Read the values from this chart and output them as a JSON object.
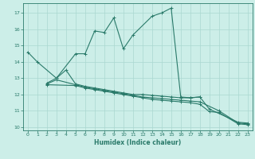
{
  "xlabel": "Humidex (Indice chaleur)",
  "xlim": [
    -0.5,
    23.5
  ],
  "ylim": [
    9.8,
    17.6
  ],
  "yticks": [
    10,
    11,
    12,
    13,
    14,
    15,
    16,
    17
  ],
  "xticks": [
    0,
    1,
    2,
    3,
    4,
    5,
    6,
    7,
    8,
    9,
    10,
    11,
    12,
    13,
    14,
    15,
    16,
    17,
    18,
    19,
    20,
    21,
    22,
    23
  ],
  "bg_color": "#cceee8",
  "line_color": "#2a7a6a",
  "grid_color": "#aad8d0",
  "series1_x": [
    0,
    1,
    3,
    5,
    6,
    7,
    8,
    9,
    10,
    11,
    13,
    14,
    15,
    16,
    17,
    18
  ],
  "series1_y": [
    14.6,
    14.0,
    13.0,
    14.5,
    14.5,
    15.9,
    15.8,
    16.7,
    14.8,
    15.65,
    16.8,
    17.0,
    17.3,
    11.85,
    11.8,
    11.85
  ],
  "series2_x": [
    2,
    3,
    4,
    5,
    6,
    7,
    8,
    9,
    10,
    11,
    12,
    13,
    14,
    15,
    16,
    17,
    18,
    19,
    22,
    23
  ],
  "series2_y": [
    12.7,
    13.0,
    13.5,
    12.65,
    12.5,
    12.4,
    12.3,
    12.2,
    12.1,
    12.0,
    12.0,
    11.95,
    11.9,
    11.85,
    11.8,
    11.8,
    11.85,
    11.1,
    10.3,
    10.25
  ],
  "series3_x": [
    2,
    3,
    5,
    6,
    7,
    8,
    9,
    10,
    11,
    12,
    13,
    14,
    15,
    16,
    17,
    18,
    20,
    22,
    23
  ],
  "series3_y": [
    12.65,
    12.9,
    12.6,
    12.45,
    12.35,
    12.25,
    12.15,
    12.05,
    11.95,
    11.85,
    11.8,
    11.75,
    11.7,
    11.65,
    11.6,
    11.55,
    11.0,
    10.25,
    10.2
  ],
  "series4_x": [
    2,
    5,
    6,
    7,
    8,
    9,
    10,
    11,
    12,
    13,
    14,
    15,
    16,
    17,
    18,
    19,
    20,
    22,
    23
  ],
  "series4_y": [
    12.6,
    12.55,
    12.4,
    12.3,
    12.2,
    12.1,
    12.0,
    11.9,
    11.8,
    11.7,
    11.65,
    11.6,
    11.55,
    11.5,
    11.4,
    10.95,
    10.9,
    10.2,
    10.15
  ]
}
